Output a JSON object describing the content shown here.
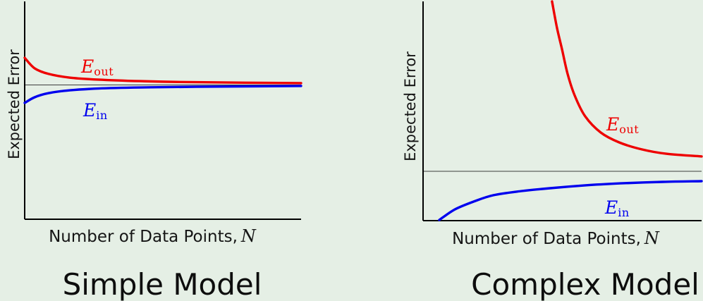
{
  "page": {
    "background_color": "#e5efe5",
    "description": "Learning curves: expected error vs number of data points for a simple and a complex model"
  },
  "colors": {
    "axis": "#000000",
    "asymptote_line": "#3c3c3c",
    "eout_red": "#ee0000",
    "ein_blue": "#0000ee",
    "text": "#151515"
  },
  "chart_data": [
    {
      "type": "line",
      "title": "Simple Model",
      "xlabel_text": "Number of Data Points,",
      "xlabel_math": "N",
      "ylabel": "Expected Error",
      "grid": false,
      "ticks": "none",
      "legend": "inline-labels",
      "asymptote_frac": 0.617,
      "series": [
        {
          "name": "E_out",
          "label_main": "E",
          "label_sub": "out",
          "color": "#ee0000",
          "points": [
            [
              0,
              0.741
            ],
            [
              0.036,
              0.693
            ],
            [
              0.087,
              0.667
            ],
            [
              0.164,
              0.65
            ],
            [
              0.266,
              0.641
            ],
            [
              0.42,
              0.634
            ],
            [
              0.62,
              0.629
            ],
            [
              1,
              0.625
            ]
          ]
        },
        {
          "name": "E_in",
          "label_main": "E",
          "label_sub": "in",
          "color": "#0000ee",
          "points": [
            [
              0,
              0.534
            ],
            [
              0.036,
              0.56
            ],
            [
              0.087,
              0.579
            ],
            [
              0.164,
              0.592
            ],
            [
              0.266,
              0.6
            ],
            [
              0.42,
              0.605
            ],
            [
              0.62,
              0.608
            ],
            [
              1,
              0.612
            ]
          ]
        }
      ]
    },
    {
      "type": "line",
      "title": "Complex Model",
      "xlabel_text": "Number of Data Points,",
      "xlabel_math": "N",
      "ylabel": "Expected Error",
      "grid": false,
      "ticks": "none",
      "legend": "inline-labels",
      "asymptote_frac": 0.225,
      "series": [
        {
          "name": "E_out",
          "label_main": "E",
          "label_sub": "out",
          "color": "#ee0000",
          "points": [
            [
              0.463,
              1.0
            ],
            [
              0.481,
              0.878
            ],
            [
              0.499,
              0.781
            ],
            [
              0.519,
              0.669
            ],
            [
              0.544,
              0.572
            ],
            [
              0.582,
              0.476
            ],
            [
              0.638,
              0.402
            ],
            [
              0.704,
              0.357
            ],
            [
              0.785,
              0.325
            ],
            [
              0.873,
              0.305
            ],
            [
              1,
              0.293
            ]
          ]
        },
        {
          "name": "E_in",
          "label_main": "E",
          "label_sub": "in",
          "color": "#0000ee",
          "points": [
            [
              0.058,
              0.003
            ],
            [
              0.114,
              0.051
            ],
            [
              0.182,
              0.087
            ],
            [
              0.253,
              0.116
            ],
            [
              0.354,
              0.135
            ],
            [
              0.456,
              0.148
            ],
            [
              0.582,
              0.161
            ],
            [
              0.709,
              0.17
            ],
            [
              0.861,
              0.177
            ],
            [
              1,
              0.18
            ]
          ]
        }
      ]
    }
  ]
}
